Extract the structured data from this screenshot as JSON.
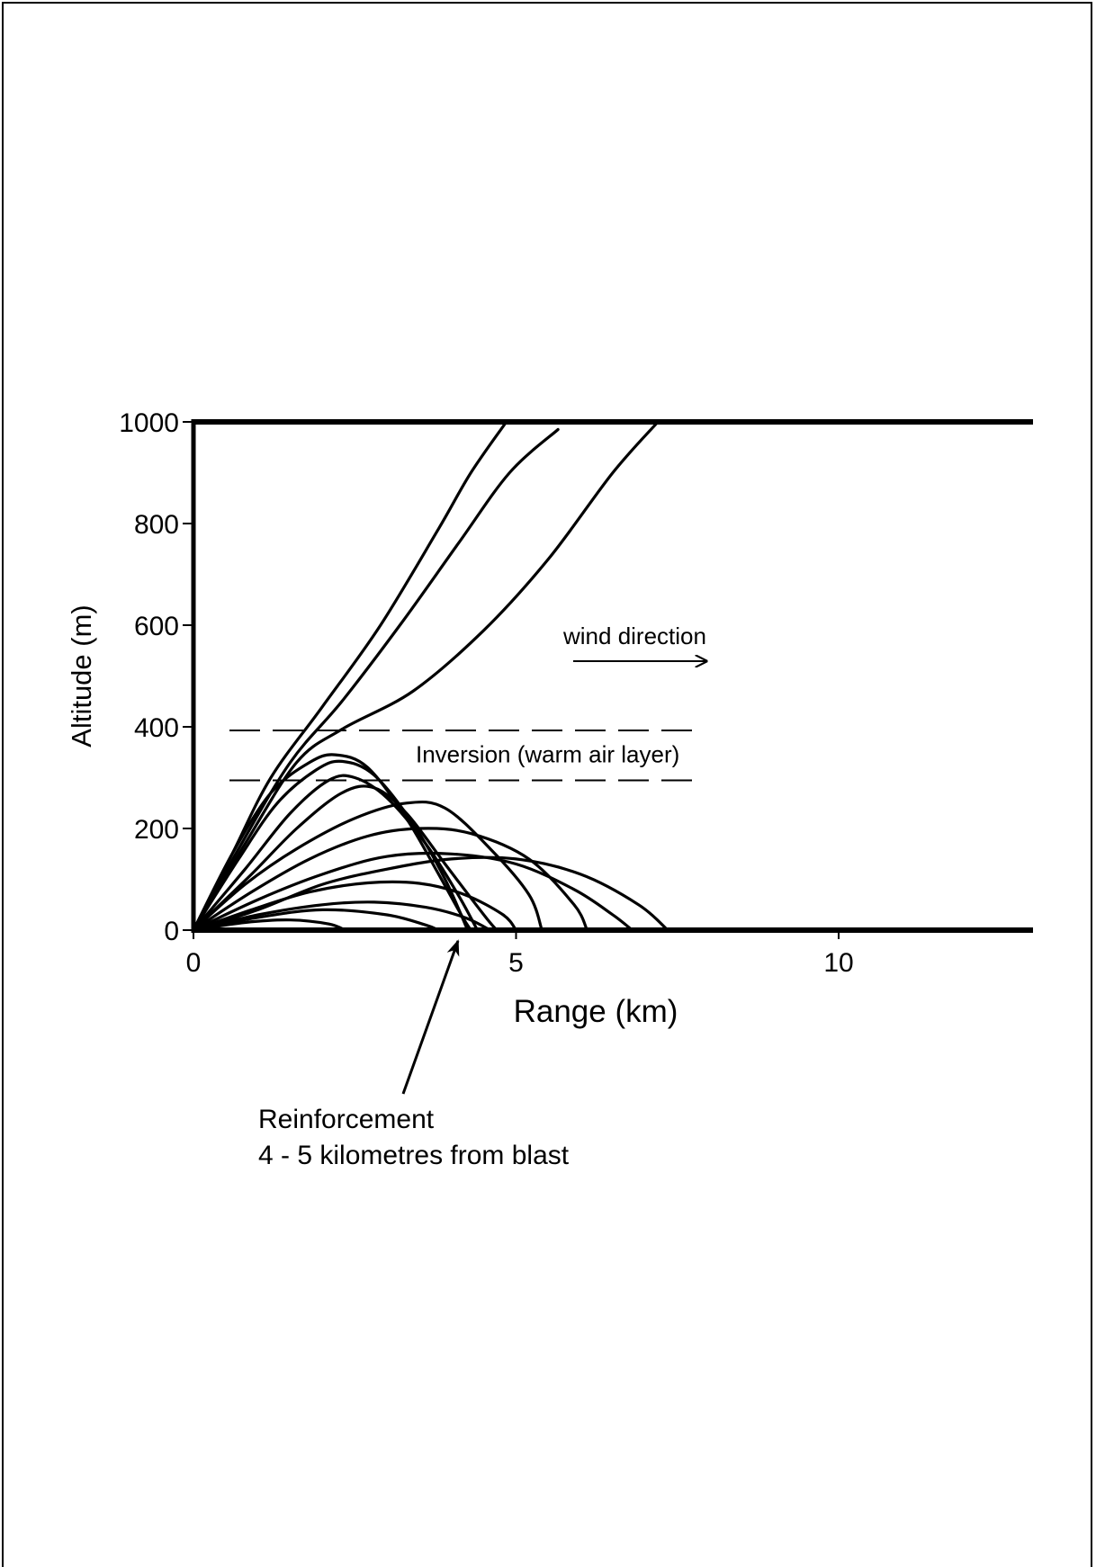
{
  "chart_data": {
    "type": "line",
    "title": "",
    "xlabel": "Range (km)",
    "ylabel": "Altitude (m)",
    "xlim": [
      0,
      13
    ],
    "ylim": [
      0,
      1000
    ],
    "xticks": [
      0,
      5,
      10
    ],
    "yticks": [
      0,
      200,
      400,
      600,
      800,
      1000
    ],
    "grid": false,
    "legend": "none",
    "inversion_layer": {
      "bottom": 300,
      "top": 400,
      "label": "Inversion (warm air layer)"
    },
    "wind": {
      "label": "wind direction",
      "direction": "right"
    },
    "callout": {
      "line1": "Reinforcement",
      "line2": "4 - 5 kilometres from blast",
      "points_to_x": 4.1
    },
    "rays": [
      {
        "group": "escaping",
        "points": [
          [
            0,
            0
          ],
          [
            0.6,
            150
          ],
          [
            1.2,
            300
          ],
          [
            2.0,
            440
          ],
          [
            2.9,
            600
          ],
          [
            3.8,
            790
          ],
          [
            4.3,
            900
          ],
          [
            4.85,
            1000
          ]
        ]
      },
      {
        "group": "escaping",
        "points": [
          [
            0,
            0
          ],
          [
            0.7,
            160
          ],
          [
            1.5,
            330
          ],
          [
            2.3,
            450
          ],
          [
            3.2,
            600
          ],
          [
            4.1,
            760
          ],
          [
            4.9,
            900
          ],
          [
            5.65,
            985
          ]
        ]
      },
      {
        "group": "escaping",
        "points": [
          [
            0,
            0
          ],
          [
            0.8,
            170
          ],
          [
            1.6,
            330
          ],
          [
            2.3,
            395
          ],
          [
            3.4,
            470
          ],
          [
            4.5,
            590
          ],
          [
            5.5,
            730
          ],
          [
            6.5,
            900
          ],
          [
            7.2,
            1000
          ]
        ]
      },
      {
        "group": "refracted",
        "points": [
          [
            0,
            0
          ],
          [
            0.6,
            150
          ],
          [
            1.2,
            270
          ],
          [
            1.8,
            330
          ],
          [
            2.2,
            345
          ],
          [
            2.7,
            320
          ],
          [
            3.3,
            220
          ],
          [
            3.8,
            110
          ],
          [
            4.15,
            30
          ],
          [
            4.3,
            0
          ]
        ]
      },
      {
        "group": "refracted",
        "points": [
          [
            0,
            0
          ],
          [
            0.7,
            140
          ],
          [
            1.3,
            250
          ],
          [
            1.9,
            315
          ],
          [
            2.3,
            332
          ],
          [
            2.8,
            305
          ],
          [
            3.4,
            210
          ],
          [
            3.9,
            100
          ],
          [
            4.25,
            0
          ]
        ]
      },
      {
        "group": "refracted",
        "points": [
          [
            0,
            0
          ],
          [
            0.8,
            120
          ],
          [
            1.5,
            230
          ],
          [
            2.1,
            295
          ],
          [
            2.5,
            300
          ],
          [
            3.0,
            260
          ],
          [
            3.6,
            170
          ],
          [
            4.1,
            70
          ],
          [
            4.4,
            0
          ]
        ]
      },
      {
        "group": "refracted",
        "points": [
          [
            0,
            0
          ],
          [
            0.9,
            110
          ],
          [
            1.6,
            200
          ],
          [
            2.3,
            270
          ],
          [
            2.8,
            280
          ],
          [
            3.3,
            230
          ],
          [
            3.9,
            130
          ],
          [
            4.5,
            30
          ],
          [
            4.7,
            0
          ]
        ]
      },
      {
        "group": "ground",
        "points": [
          [
            0,
            0
          ],
          [
            0.8,
            90
          ],
          [
            1.6,
            160
          ],
          [
            2.5,
            220
          ],
          [
            3.3,
            250
          ],
          [
            3.9,
            240
          ],
          [
            4.6,
            160
          ],
          [
            5.2,
            70
          ],
          [
            5.4,
            0
          ]
        ]
      },
      {
        "group": "ground",
        "points": [
          [
            0,
            0
          ],
          [
            0.9,
            75
          ],
          [
            1.8,
            140
          ],
          [
            2.7,
            185
          ],
          [
            3.5,
            200
          ],
          [
            4.3,
            190
          ],
          [
            5.2,
            140
          ],
          [
            5.9,
            50
          ],
          [
            6.1,
            0
          ]
        ]
      },
      {
        "group": "ground",
        "points": [
          [
            0,
            0
          ],
          [
            1.0,
            60
          ],
          [
            2.0,
            110
          ],
          [
            3.0,
            145
          ],
          [
            4.0,
            150
          ],
          [
            5.0,
            130
          ],
          [
            5.9,
            80
          ],
          [
            6.5,
            30
          ],
          [
            6.8,
            0
          ]
        ]
      },
      {
        "group": "ground",
        "points": [
          [
            0,
            0
          ],
          [
            1.0,
            40
          ],
          [
            2.0,
            90
          ],
          [
            3.0,
            120
          ],
          [
            4.0,
            140
          ],
          [
            5.0,
            140
          ],
          [
            6.0,
            110
          ],
          [
            6.9,
            50
          ],
          [
            7.35,
            0
          ]
        ]
      },
      {
        "group": "ground",
        "points": [
          [
            0,
            0
          ],
          [
            0.9,
            40
          ],
          [
            1.8,
            75
          ],
          [
            2.7,
            93
          ],
          [
            3.5,
            92
          ],
          [
            4.2,
            70
          ],
          [
            4.8,
            30
          ],
          [
            5.0,
            0
          ]
        ]
      },
      {
        "group": "ground",
        "points": [
          [
            0,
            0
          ],
          [
            1.0,
            30
          ],
          [
            2.0,
            50
          ],
          [
            2.8,
            55
          ],
          [
            3.6,
            45
          ],
          [
            4.2,
            25
          ],
          [
            4.6,
            0
          ]
        ]
      },
      {
        "group": "ground",
        "points": [
          [
            0,
            0
          ],
          [
            1.0,
            25
          ],
          [
            2.0,
            40
          ],
          [
            3.0,
            30
          ],
          [
            3.6,
            10
          ],
          [
            3.8,
            0
          ]
        ]
      },
      {
        "group": "ground",
        "points": [
          [
            0,
            0
          ],
          [
            0.8,
            15
          ],
          [
            1.5,
            20
          ],
          [
            2.1,
            12
          ],
          [
            2.35,
            0
          ]
        ]
      }
    ]
  }
}
